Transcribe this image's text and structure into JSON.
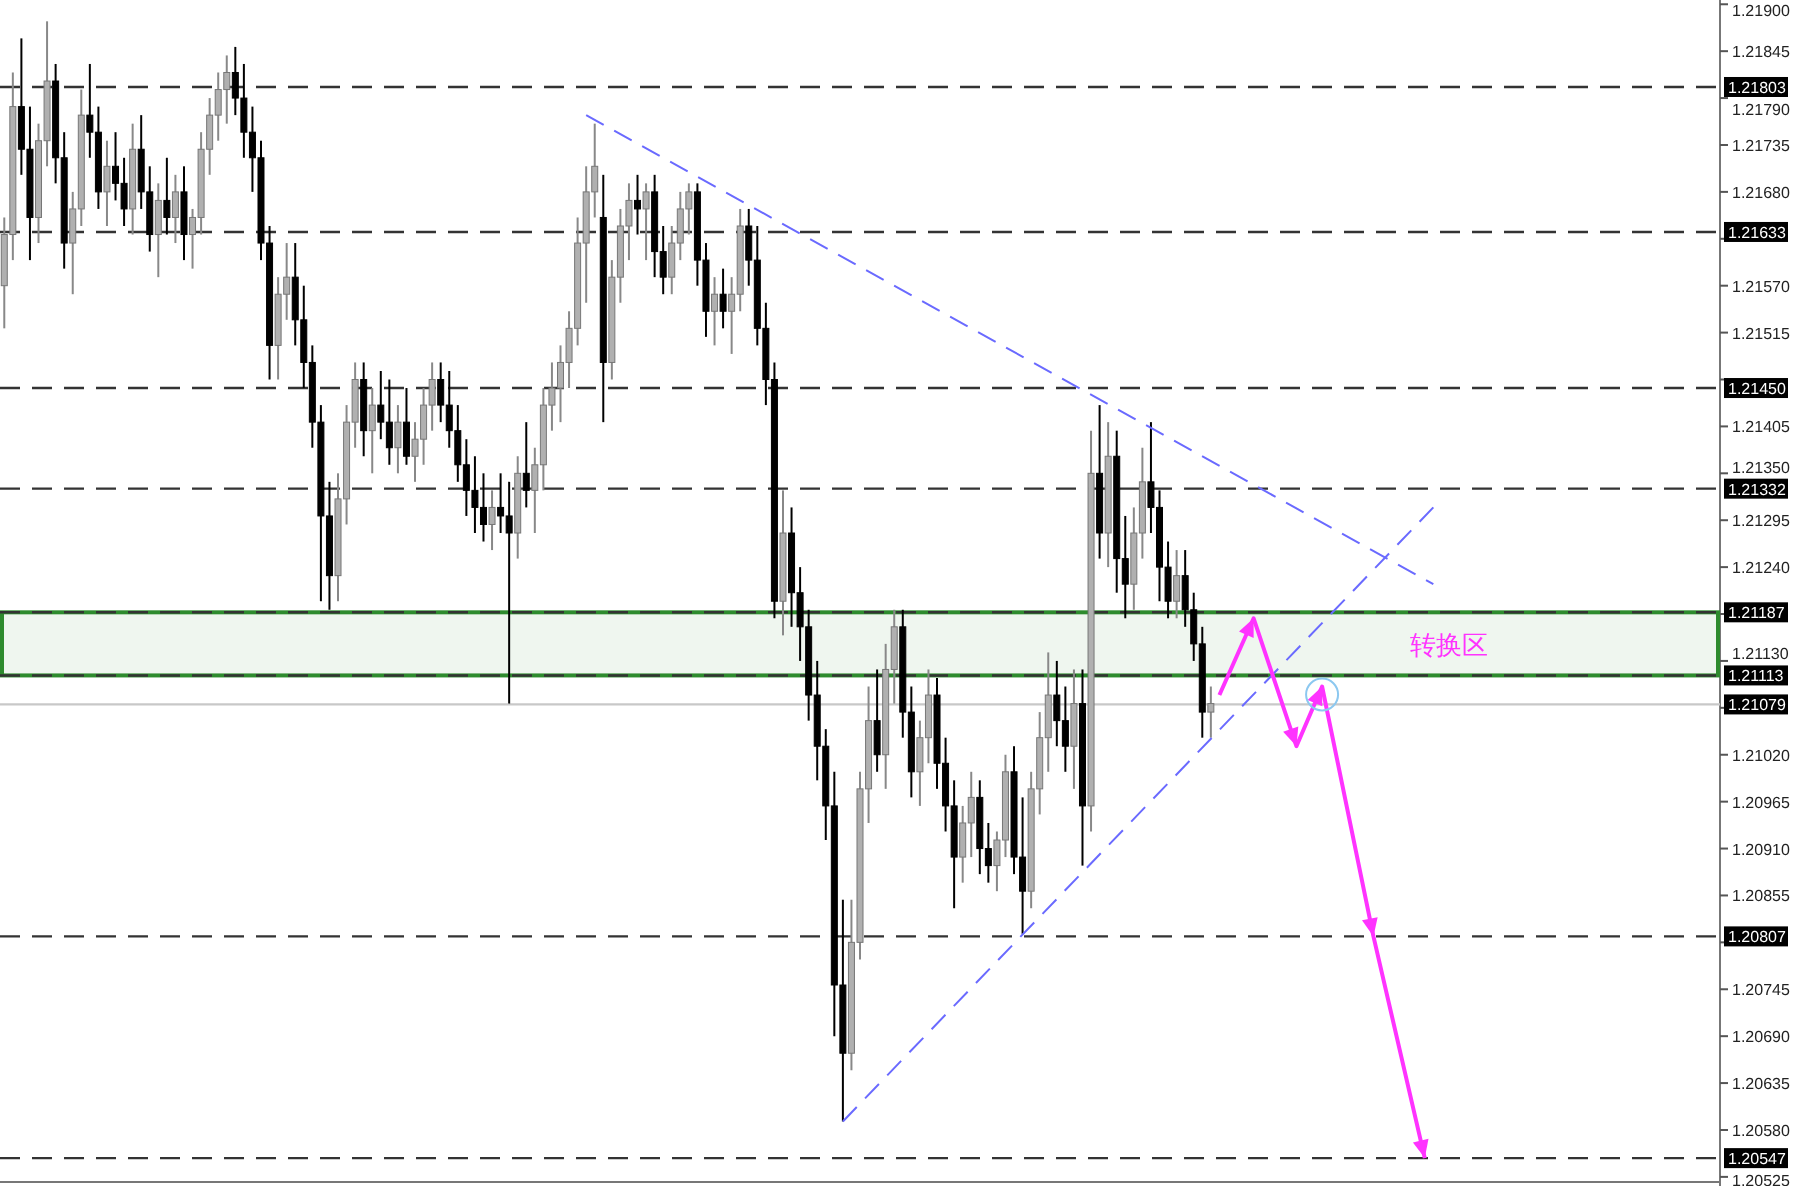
{
  "chart_data": {
    "type": "candlestick",
    "categories": [
      null,
      null,
      null,
      null,
      null,
      null,
      null,
      null,
      null,
      null,
      null,
      null,
      null,
      null,
      null,
      null,
      null,
      null,
      null,
      null,
      null,
      null,
      null,
      null,
      null,
      null,
      null,
      null,
      null,
      null,
      null,
      null,
      null,
      null,
      null,
      null,
      null,
      null,
      null,
      null,
      null,
      null,
      null,
      null,
      null,
      null,
      null,
      null,
      null,
      null,
      null,
      null,
      null,
      null,
      null,
      null,
      null,
      null,
      null,
      null,
      null,
      null,
      null,
      null,
      null,
      null,
      null,
      null,
      null,
      null,
      null,
      null,
      null,
      null,
      null,
      null,
      null,
      null,
      null,
      null,
      null,
      null,
      null,
      null,
      null,
      null,
      null,
      null,
      null,
      null,
      null,
      null,
      null,
      null,
      null,
      null,
      null,
      null,
      null,
      null,
      null,
      null,
      null,
      null,
      null,
      null,
      null,
      null,
      null,
      null,
      null,
      null,
      null,
      null,
      null,
      null,
      null,
      null,
      null,
      null,
      null,
      null,
      null,
      null,
      null,
      null,
      null,
      null,
      null,
      null,
      null,
      null,
      null,
      null,
      null,
      null,
      null,
      null,
      null,
      null,
      null,
      null,
      null,
      null,
      null,
      null,
      null,
      null,
      null,
      null,
      null,
      null,
      null,
      null,
      null,
      null,
      null,
      null,
      null,
      null,
      null,
      null,
      null,
      null,
      null,
      null,
      null,
      null,
      null,
      null,
      null,
      null,
      null,
      null,
      null,
      null,
      null,
      null,
      null,
      null,
      null,
      null,
      null,
      null,
      null,
      null,
      null,
      null,
      null,
      null,
      null,
      null,
      null,
      null,
      null,
      null,
      null,
      null,
      null,
      null,
      null
    ],
    "ohlc": [
      [
        1.2157,
        1.2165,
        1.2152,
        1.2163
      ],
      [
        1.2163,
        1.2182,
        1.216,
        1.2178
      ],
      [
        1.2178,
        1.2186,
        1.217,
        1.2173
      ],
      [
        1.2173,
        1.2178,
        1.216,
        1.2165
      ],
      [
        1.2165,
        1.2176,
        1.2162,
        1.2174
      ],
      [
        1.2174,
        1.2188,
        1.2171,
        1.2181
      ],
      [
        1.2181,
        1.2183,
        1.2169,
        1.2172
      ],
      [
        1.2172,
        1.2175,
        1.2159,
        1.2162
      ],
      [
        1.2162,
        1.2168,
        1.2156,
        1.2166
      ],
      [
        1.2166,
        1.218,
        1.2164,
        1.2177
      ],
      [
        1.2177,
        1.2183,
        1.2172,
        1.2175
      ],
      [
        1.2175,
        1.2178,
        1.2166,
        1.2168
      ],
      [
        1.2168,
        1.2174,
        1.2164,
        1.2171
      ],
      [
        1.2171,
        1.2175,
        1.2167,
        1.2169
      ],
      [
        1.2169,
        1.2172,
        1.2164,
        1.2166
      ],
      [
        1.2166,
        1.2176,
        1.2163,
        1.2173
      ],
      [
        1.2173,
        1.2177,
        1.2166,
        1.2168
      ],
      [
        1.2168,
        1.2171,
        1.2161,
        1.2163
      ],
      [
        1.2163,
        1.2169,
        1.2158,
        1.2167
      ],
      [
        1.2167,
        1.2172,
        1.2163,
        1.2165
      ],
      [
        1.2165,
        1.217,
        1.2162,
        1.2168
      ],
      [
        1.2168,
        1.2171,
        1.216,
        1.2163
      ],
      [
        1.2163,
        1.2166,
        1.2159,
        1.2165
      ],
      [
        1.2165,
        1.2175,
        1.2163,
        1.2173
      ],
      [
        1.2173,
        1.2179,
        1.217,
        1.2177
      ],
      [
        1.2177,
        1.2182,
        1.2174,
        1.218
      ],
      [
        1.218,
        1.2184,
        1.2176,
        1.2182
      ],
      [
        1.2182,
        1.2185,
        1.2177,
        1.2179
      ],
      [
        1.2179,
        1.2183,
        1.2172,
        1.2175
      ],
      [
        1.2175,
        1.2178,
        1.2168,
        1.2172
      ],
      [
        1.2172,
        1.2174,
        1.216,
        1.2162
      ],
      [
        1.2162,
        1.2164,
        1.2146,
        1.215
      ],
      [
        1.215,
        1.2158,
        1.2146,
        1.2156
      ],
      [
        1.2156,
        1.2162,
        1.2153,
        1.2158
      ],
      [
        1.2158,
        1.2162,
        1.215,
        1.2153
      ],
      [
        1.2153,
        1.2157,
        1.2145,
        1.2148
      ],
      [
        1.2148,
        1.215,
        1.2138,
        1.2141
      ],
      [
        1.2141,
        1.2143,
        1.212,
        1.213
      ],
      [
        1.213,
        1.2134,
        1.2119,
        1.2123
      ],
      [
        1.2123,
        1.2135,
        1.212,
        1.2132
      ],
      [
        1.2132,
        1.2143,
        1.2129,
        1.2141
      ],
      [
        1.2141,
        1.2148,
        1.2138,
        1.2146
      ],
      [
        1.2146,
        1.2148,
        1.2137,
        1.214
      ],
      [
        1.214,
        1.2145,
        1.2135,
        1.2143
      ],
      [
        1.2143,
        1.2147,
        1.2139,
        1.2141
      ],
      [
        1.2141,
        1.2146,
        1.2136,
        1.2138
      ],
      [
        1.2138,
        1.2143,
        1.2135,
        1.2141
      ],
      [
        1.2141,
        1.2145,
        1.2136,
        1.2137
      ],
      [
        1.2137,
        1.2141,
        1.2134,
        1.2139
      ],
      [
        1.2139,
        1.2145,
        1.2136,
        1.2143
      ],
      [
        1.2143,
        1.2148,
        1.214,
        1.2146
      ],
      [
        1.2146,
        1.2148,
        1.2141,
        1.2143
      ],
      [
        1.2143,
        1.2147,
        1.2138,
        1.214
      ],
      [
        1.214,
        1.2143,
        1.2134,
        1.2136
      ],
      [
        1.2136,
        1.2139,
        1.213,
        1.2133
      ],
      [
        1.2133,
        1.2137,
        1.2128,
        1.2131
      ],
      [
        1.2131,
        1.2135,
        1.2127,
        1.2129
      ],
      [
        1.2129,
        1.2133,
        1.2126,
        1.2131
      ],
      [
        1.2131,
        1.2135,
        1.2128,
        1.213
      ],
      [
        1.213,
        1.2134,
        1.2108,
        1.2128
      ],
      [
        1.2128,
        1.2137,
        1.2125,
        1.2135
      ],
      [
        1.2135,
        1.2141,
        1.2131,
        1.2133
      ],
      [
        1.2133,
        1.2138,
        1.2128,
        1.2136
      ],
      [
        1.2136,
        1.2145,
        1.2133,
        1.2143
      ],
      [
        1.2143,
        1.2148,
        1.214,
        1.2145
      ],
      [
        1.2145,
        1.215,
        1.2141,
        1.2148
      ],
      [
        1.2148,
        1.2154,
        1.2145,
        1.2152
      ],
      [
        1.2152,
        1.2165,
        1.215,
        1.2162
      ],
      [
        1.2162,
        1.2171,
        1.2155,
        1.2168
      ],
      [
        1.2168,
        1.2176,
        1.2165,
        1.2171
      ],
      [
        1.2165,
        1.217,
        1.2141,
        1.2148
      ],
      [
        1.2148,
        1.216,
        1.2146,
        1.2158
      ],
      [
        1.2158,
        1.2166,
        1.2155,
        1.2164
      ],
      [
        1.2164,
        1.2169,
        1.216,
        1.2167
      ],
      [
        1.2167,
        1.217,
        1.2163,
        1.2166
      ],
      [
        1.2166,
        1.2169,
        1.216,
        1.2168
      ],
      [
        1.2168,
        1.217,
        1.2158,
        1.2161
      ],
      [
        1.2161,
        1.2164,
        1.2156,
        1.2158
      ],
      [
        1.2158,
        1.2164,
        1.2156,
        1.2162
      ],
      [
        1.2162,
        1.2168,
        1.216,
        1.2166
      ],
      [
        1.2166,
        1.2169,
        1.2163,
        1.2168
      ],
      [
        1.2168,
        1.2169,
        1.2157,
        1.216
      ],
      [
        1.216,
        1.2162,
        1.2151,
        1.2154
      ],
      [
        1.2154,
        1.2158,
        1.215,
        1.2156
      ],
      [
        1.2156,
        1.2159,
        1.2152,
        1.2154
      ],
      [
        1.2154,
        1.2158,
        1.2149,
        1.2156
      ],
      [
        1.2156,
        1.2166,
        1.2154,
        1.2164
      ],
      [
        1.2164,
        1.2166,
        1.2157,
        1.216
      ],
      [
        1.216,
        1.2164,
        1.215,
        1.2152
      ],
      [
        1.2152,
        1.2155,
        1.2143,
        1.2146
      ],
      [
        1.2146,
        1.2148,
        1.2118,
        1.212
      ],
      [
        1.212,
        1.2133,
        1.2116,
        1.2128
      ],
      [
        1.2128,
        1.2131,
        1.2117,
        1.2121
      ],
      [
        1.2121,
        1.2124,
        1.2113,
        1.2117
      ],
      [
        1.2117,
        1.2119,
        1.2106,
        1.2109
      ],
      [
        1.2109,
        1.2113,
        1.2099,
        1.2103
      ],
      [
        1.2103,
        1.2105,
        1.2092,
        1.2096
      ],
      [
        1.2096,
        1.21,
        1.2069,
        1.2075
      ],
      [
        1.2075,
        1.2085,
        1.2059,
        1.2067
      ],
      [
        1.2067,
        1.2085,
        1.2065,
        1.208
      ],
      [
        1.208,
        1.21,
        1.2078,
        1.2098
      ],
      [
        1.2098,
        1.211,
        1.2094,
        1.2106
      ],
      [
        1.2106,
        1.2112,
        1.21,
        1.2102
      ],
      [
        1.2102,
        1.2115,
        1.2098,
        1.2112
      ],
      [
        1.2112,
        1.2119,
        1.2108,
        1.2117
      ],
      [
        1.2117,
        1.2119,
        1.2104,
        1.2107
      ],
      [
        1.2107,
        1.211,
        1.2097,
        1.21
      ],
      [
        1.21,
        1.2106,
        1.2096,
        1.2104
      ],
      [
        1.2104,
        1.2112,
        1.2101,
        1.2109
      ],
      [
        1.2109,
        1.2111,
        1.2098,
        1.2101
      ],
      [
        1.2101,
        1.2104,
        1.2093,
        1.2096
      ],
      [
        1.2096,
        1.2099,
        1.2084,
        1.209
      ],
      [
        1.209,
        1.2096,
        1.2087,
        1.2094
      ],
      [
        1.2094,
        1.21,
        1.209,
        1.2097
      ],
      [
        1.2097,
        1.2099,
        1.2088,
        1.2091
      ],
      [
        1.2091,
        1.2094,
        1.2087,
        1.2089
      ],
      [
        1.2089,
        1.2093,
        1.2086,
        1.2092
      ],
      [
        1.2092,
        1.2102,
        1.209,
        1.21
      ],
      [
        1.21,
        1.2103,
        1.2088,
        1.209
      ],
      [
        1.209,
        1.2097,
        1.2081,
        1.2086
      ],
      [
        1.2086,
        1.21,
        1.2084,
        1.2098
      ],
      [
        1.2098,
        1.2107,
        1.2095,
        1.2104
      ],
      [
        1.2104,
        1.2114,
        1.21,
        1.2109
      ],
      [
        1.2109,
        1.2113,
        1.2103,
        1.2106
      ],
      [
        1.2106,
        1.211,
        1.21,
        1.2103
      ],
      [
        1.2103,
        1.2112,
        1.2098,
        1.2108
      ],
      [
        1.2108,
        1.2112,
        1.2089,
        1.2096
      ],
      [
        1.2096,
        1.214,
        1.2093,
        1.2135
      ],
      [
        1.2135,
        1.2143,
        1.2125,
        1.2128
      ],
      [
        1.2128,
        1.2141,
        1.2124,
        1.2137
      ],
      [
        1.2137,
        1.214,
        1.2121,
        1.2125
      ],
      [
        1.2125,
        1.213,
        1.2118,
        1.2122
      ],
      [
        1.2122,
        1.2131,
        1.2119,
        1.2128
      ],
      [
        1.2128,
        1.2138,
        1.2125,
        1.2134
      ],
      [
        1.2134,
        1.2141,
        1.2128,
        1.2131
      ],
      [
        1.2131,
        1.2133,
        1.212,
        1.2124
      ],
      [
        1.2124,
        1.2127,
        1.2118,
        1.212
      ],
      [
        1.212,
        1.2126,
        1.2118,
        1.2123
      ],
      [
        1.2123,
        1.2126,
        1.2117,
        1.2119
      ],
      [
        1.2119,
        1.2121,
        1.2113,
        1.2115
      ],
      [
        1.2115,
        1.2117,
        1.2104,
        1.2107
      ],
      [
        1.2107,
        1.211,
        1.2104,
        1.2108
      ],
      null,
      null,
      null,
      null,
      null,
      null,
      null,
      null,
      null,
      null,
      null,
      null,
      null,
      null,
      null,
      null,
      null,
      null,
      null,
      null,
      null,
      null,
      null,
      null,
      null,
      null,
      null,
      null,
      null,
      null,
      null,
      null,
      null,
      null,
      null,
      null,
      null,
      null,
      null,
      null,
      null,
      null,
      null,
      null,
      null,
      null,
      null,
      null,
      null,
      null,
      null,
      null,
      null,
      null,
      null,
      null,
      null,
      null,
      null
    ],
    "ylim": [
      1.20519,
      1.21905
    ],
    "yticks": [
      {
        "value": 1.219,
        "label": "1.21900"
      },
      {
        "value": 1.21845,
        "label": "1.21845"
      },
      {
        "value": 1.2179,
        "label": "1.21790"
      },
      {
        "value": 1.21735,
        "label": "1.21735"
      },
      {
        "value": 1.2168,
        "label": "1.21680"
      },
      {
        "value": 1.21625,
        "label": null
      },
      {
        "value": 1.2157,
        "label": "1.21570"
      },
      {
        "value": 1.21515,
        "label": "1.21515"
      },
      {
        "value": 1.2146,
        "label": null
      },
      {
        "value": 1.21405,
        "label": "1.21405"
      },
      {
        "value": 1.2135,
        "label": "1.21350"
      },
      {
        "value": 1.21295,
        "label": "1.21295"
      },
      {
        "value": 1.2124,
        "label": "1.21240"
      },
      {
        "value": 1.21185,
        "label": null
      },
      {
        "value": 1.2113,
        "label": "1.21130"
      },
      {
        "value": 1.21075,
        "label": null
      },
      {
        "value": 1.2102,
        "label": "1.21020"
      },
      {
        "value": 1.20965,
        "label": "1.20965"
      },
      {
        "value": 1.2091,
        "label": "1.20910"
      },
      {
        "value": 1.20855,
        "label": "1.20855"
      },
      {
        "value": 1.208,
        "label": null
      },
      {
        "value": 1.20745,
        "label": "1.20745"
      },
      {
        "value": 1.2069,
        "label": "1.20690"
      },
      {
        "value": 1.20635,
        "label": "1.20635"
      },
      {
        "value": 1.2058,
        "label": "1.20580"
      },
      {
        "value": 1.20525,
        "label": "1.20525"
      }
    ],
    "tick_labels": "y",
    "ref_lines": [
      {
        "axis": "y",
        "value": 1.21803,
        "label": "1.21803",
        "color": "#333333",
        "line_style": "dashed"
      },
      {
        "axis": "y",
        "value": 1.21633,
        "label": "1.21633",
        "color": "#333333",
        "line_style": "dashed"
      },
      {
        "axis": "y",
        "value": 1.2145,
        "label": "1.21450",
        "color": "#333333",
        "line_style": "dashed"
      },
      {
        "axis": "y",
        "value": 1.21332,
        "label": "1.21332",
        "color": "#333333",
        "line_style": "dashed"
      },
      {
        "axis": "y",
        "value": 1.21187,
        "label": "1.21187",
        "color": "#333333",
        "line_style": "dashed"
      },
      {
        "axis": "y",
        "value": 1.21113,
        "label": "1.21113",
        "color": "#333333",
        "line_style": "dashed"
      },
      {
        "axis": "y",
        "value": 1.21079,
        "label": "1.21079",
        "color": "#c8c8c8",
        "line_style": "solid"
      },
      {
        "axis": "y",
        "value": 1.20807,
        "label": "1.20807",
        "color": "#333333",
        "line_style": "dashed"
      },
      {
        "axis": "y",
        "value": 1.20547,
        "label": "1.20547",
        "color": "#333333",
        "line_style": "dashed"
      }
    ],
    "bands": [
      {
        "axis": "y",
        "from": 1.21113,
        "to": 1.21187,
        "label": "转换区",
        "color": "#2e8b2e"
      }
    ],
    "series": [
      {
        "type": "line",
        "color": "#6a6aff",
        "line_style": "dashed",
        "values": [
          null,
          null,
          null,
          null,
          null,
          null,
          null,
          null,
          null,
          null,
          null,
          null,
          null,
          null,
          null,
          null,
          null,
          null,
          null,
          null,
          null,
          null,
          null,
          null,
          null,
          null,
          null,
          null,
          null,
          null,
          null,
          null,
          null,
          null,
          null,
          null,
          null,
          null,
          null,
          null,
          null,
          null,
          null,
          null,
          null,
          null,
          null,
          null,
          null,
          null,
          null,
          null,
          null,
          null,
          null,
          null,
          null,
          null,
          null,
          null,
          null,
          null,
          null,
          null,
          null,
          null,
          null,
          null,
          1.2177,
          null,
          null,
          null,
          null,
          null,
          null,
          null,
          null,
          null,
          null,
          null,
          null,
          null,
          null,
          null,
          null,
          null,
          null,
          null,
          null,
          null,
          null,
          null,
          null,
          null,
          null,
          null,
          null,
          null,
          null,
          null,
          null,
          null,
          null,
          null,
          null,
          null,
          null,
          null,
          null,
          null,
          null,
          null,
          null,
          null,
          null,
          null,
          null,
          null,
          null,
          null,
          null,
          null,
          null,
          null,
          null,
          null,
          null,
          null,
          null,
          null,
          null,
          null,
          null,
          null,
          null,
          null,
          null,
          null,
          null,
          null,
          null,
          null,
          null,
          null,
          null,
          null,
          null,
          null,
          null,
          null,
          null,
          null,
          null,
          null,
          null,
          null,
          null,
          null,
          null,
          null,
          null,
          null,
          null,
          null,
          null,
          null,
          null,
          1.2122,
          null,
          null,
          null,
          null,
          null,
          null,
          null,
          null,
          null,
          null,
          null,
          null,
          null,
          null,
          null,
          null,
          null,
          null,
          null,
          null,
          null,
          null,
          null,
          null,
          null,
          null,
          null,
          null,
          null,
          null,
          null,
          null,
          null
        ]
      },
      {
        "type": "line",
        "color": "#6a6aff",
        "line_style": "dashed",
        "values": [
          null,
          null,
          null,
          null,
          null,
          null,
          null,
          null,
          null,
          null,
          null,
          null,
          null,
          null,
          null,
          null,
          null,
          null,
          null,
          null,
          null,
          null,
          null,
          null,
          null,
          null,
          null,
          null,
          null,
          null,
          null,
          null,
          null,
          null,
          null,
          null,
          null,
          null,
          null,
          null,
          null,
          null,
          null,
          null,
          null,
          null,
          null,
          null,
          null,
          null,
          null,
          null,
          null,
          null,
          null,
          null,
          null,
          null,
          null,
          null,
          null,
          null,
          null,
          null,
          null,
          null,
          null,
          null,
          null,
          null,
          null,
          null,
          null,
          null,
          null,
          null,
          null,
          null,
          null,
          null,
          null,
          null,
          null,
          null,
          null,
          null,
          null,
          null,
          null,
          null,
          null,
          null,
          null,
          null,
          null,
          null,
          null,
          null,
          1.2059,
          null,
          null,
          null,
          null,
          null,
          null,
          null,
          null,
          null,
          null,
          null,
          null,
          null,
          null,
          null,
          null,
          null,
          null,
          null,
          null,
          null,
          null,
          null,
          null,
          null,
          null,
          null,
          null,
          null,
          null,
          null,
          null,
          null,
          null,
          null,
          null,
          null,
          null,
          null,
          null,
          null,
          null,
          null,
          null,
          null,
          null,
          null,
          null,
          null,
          null,
          null,
          null,
          null,
          null,
          null,
          null,
          null,
          null,
          null,
          null,
          null,
          null,
          null,
          null,
          null,
          null,
          null,
          null,
          1.2131,
          null,
          null,
          null,
          null,
          null,
          null,
          null,
          null,
          null,
          null,
          null,
          null,
          null,
          null,
          null,
          null,
          null,
          null,
          null,
          null,
          null,
          null,
          null,
          null,
          null,
          null,
          null,
          null,
          null,
          null,
          null,
          null,
          null
        ]
      },
      {
        "type": "line",
        "color": "#ff33ff",
        "line_style": "solid",
        "values": [
          null,
          null,
          null,
          null,
          null,
          null,
          null,
          null,
          null,
          null,
          null,
          null,
          null,
          null,
          null,
          null,
          null,
          null,
          null,
          null,
          null,
          null,
          null,
          null,
          null,
          null,
          null,
          null,
          null,
          null,
          null,
          null,
          null,
          null,
          null,
          null,
          null,
          null,
          null,
          null,
          null,
          null,
          null,
          null,
          null,
          null,
          null,
          null,
          null,
          null,
          null,
          null,
          null,
          null,
          null,
          null,
          null,
          null,
          null,
          null,
          null,
          null,
          null,
          null,
          null,
          null,
          null,
          null,
          null,
          null,
          null,
          null,
          null,
          null,
          null,
          null,
          null,
          null,
          null,
          null,
          null,
          null,
          null,
          null,
          null,
          null,
          null,
          null,
          null,
          null,
          null,
          null,
          null,
          null,
          null,
          null,
          null,
          null,
          null,
          null,
          null,
          null,
          null,
          null,
          null,
          null,
          null,
          null,
          null,
          null,
          null,
          null,
          null,
          null,
          null,
          null,
          null,
          null,
          null,
          null,
          null,
          null,
          null,
          null,
          null,
          null,
          null,
          null,
          null,
          null,
          null,
          null,
          null,
          null,
          null,
          null,
          null,
          null,
          null,
          null,
          null,
          null,
          1.2109,
          null,
          null,
          null,
          1.2118,
          null,
          null,
          null,
          null,
          1.2103,
          null,
          null,
          1.211,
          null,
          null,
          null,
          null,
          null,
          1.20807,
          null,
          null,
          null,
          null,
          null,
          1.20547,
          null,
          null,
          null,
          null,
          null,
          null,
          null,
          null,
          null,
          null,
          null,
          null,
          null,
          null,
          null,
          null,
          null,
          null,
          null,
          null,
          null,
          null,
          null,
          null,
          null,
          null,
          null,
          null,
          null,
          null,
          null,
          null,
          null,
          null
        ]
      }
    ]
  }
}
